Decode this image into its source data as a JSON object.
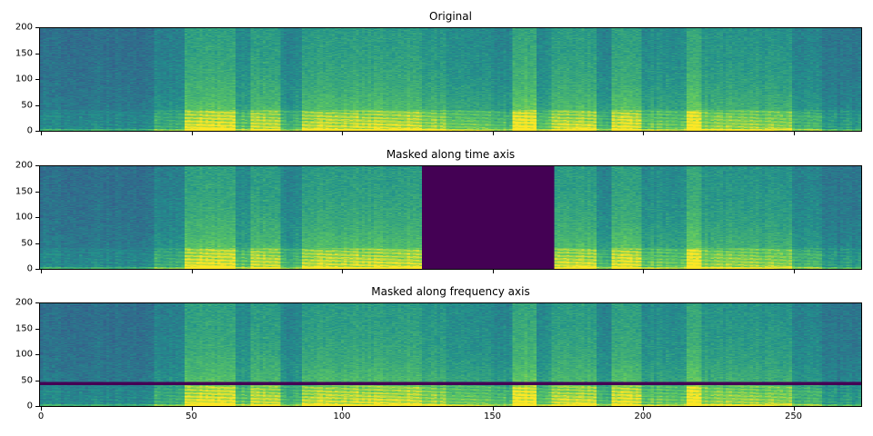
{
  "chart_data": [
    {
      "type": "heatmap",
      "title": "Original",
      "xlim": [
        0,
        273
      ],
      "ylim": [
        0,
        200
      ],
      "xticks": [
        "0",
        "50",
        "100",
        "150",
        "200",
        "250"
      ],
      "yticks": [
        "0",
        "50",
        "100",
        "150",
        "200"
      ],
      "show_xticklabels": false,
      "colormap": "viridis",
      "mask": null
    },
    {
      "type": "heatmap",
      "title": "Masked along time axis",
      "xlim": [
        0,
        273
      ],
      "ylim": [
        0,
        200
      ],
      "xticks": [
        "0",
        "50",
        "100",
        "150",
        "200",
        "250"
      ],
      "yticks": [
        "0",
        "50",
        "100",
        "150",
        "200"
      ],
      "show_xticklabels": false,
      "colormap": "viridis",
      "mask": {
        "axis": "time",
        "range": [
          127,
          171
        ],
        "color": "#440154"
      }
    },
    {
      "type": "heatmap",
      "title": "Masked along frequency axis",
      "xlim": [
        0,
        273
      ],
      "ylim": [
        0,
        200
      ],
      "xticks": [
        "0",
        "50",
        "100",
        "150",
        "200",
        "250"
      ],
      "yticks": [
        "0",
        "50",
        "100",
        "150",
        "200"
      ],
      "show_xticklabels": true,
      "colormap": "viridis",
      "mask": {
        "axis": "frequency",
        "range": [
          41,
          47
        ],
        "color": "#440154"
      }
    }
  ]
}
